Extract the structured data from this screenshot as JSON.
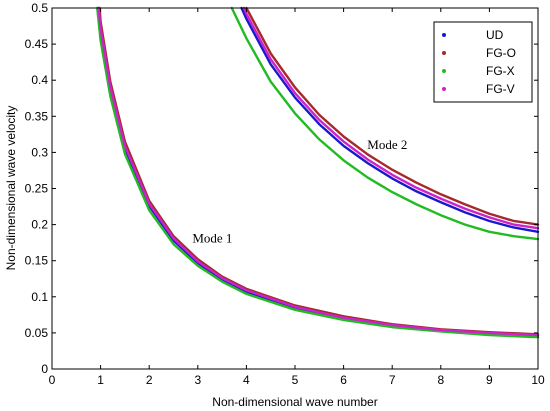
{
  "chart_data": {
    "type": "line",
    "title": "",
    "xlabel": "Non-dimensional wave number",
    "ylabel": "Non-dimensional wave velocity",
    "xlim": [
      0,
      10
    ],
    "ylim": [
      0,
      0.5
    ],
    "x_ticks": [
      0,
      1,
      2,
      3,
      4,
      5,
      6,
      7,
      8,
      9,
      10
    ],
    "y_ticks": [
      0,
      0.05,
      0.1,
      0.15,
      0.2,
      0.25,
      0.3,
      0.35,
      0.4,
      0.45,
      0.5
    ],
    "x_tick_labels": [
      "0",
      "1",
      "2",
      "3",
      "4",
      "5",
      "6",
      "7",
      "8",
      "9",
      "10"
    ],
    "y_tick_labels": [
      "0",
      "0.05",
      "0.1",
      "0.15",
      "0.2",
      "0.25",
      "0.3",
      "0.35",
      "0.4",
      "0.45",
      "0.5"
    ],
    "grid": false,
    "legend_position": "top-right",
    "annotations": [
      {
        "text": "Mode 1",
        "x": 3.3,
        "y": 0.175
      },
      {
        "text": "Mode 2",
        "x": 6.9,
        "y": 0.305
      }
    ],
    "series": [
      {
        "name": "UD",
        "color": "#1a1acc",
        "mode1": {
          "x": [
            0.95,
            1.0,
            1.2,
            1.5,
            2.0,
            2.5,
            3.0,
            3.5,
            4.0,
            5.0,
            6.0,
            7.0,
            8.0,
            9.0,
            10.0
          ],
          "y": [
            0.5,
            0.466,
            0.386,
            0.305,
            0.226,
            0.178,
            0.147,
            0.124,
            0.107,
            0.085,
            0.07,
            0.06,
            0.054,
            0.049,
            0.046
          ]
        },
        "mode2": {
          "x": [
            3.9,
            4.0,
            4.5,
            5.0,
            5.5,
            6.0,
            6.5,
            7.0,
            7.5,
            8.0,
            8.5,
            9.0,
            9.5,
            10.0
          ],
          "y": [
            0.5,
            0.485,
            0.422,
            0.376,
            0.339,
            0.309,
            0.285,
            0.264,
            0.246,
            0.231,
            0.217,
            0.205,
            0.196,
            0.19
          ]
        }
      },
      {
        "name": "FG-O",
        "color": "#a52a2a",
        "mode1": {
          "x": [
            0.98,
            1.0,
            1.2,
            1.5,
            2.0,
            2.5,
            3.0,
            3.5,
            4.0,
            5.0,
            6.0,
            7.0,
            8.0,
            9.0,
            10.0
          ],
          "y": [
            0.5,
            0.481,
            0.398,
            0.315,
            0.233,
            0.184,
            0.152,
            0.128,
            0.111,
            0.088,
            0.073,
            0.062,
            0.055,
            0.051,
            0.048
          ]
        },
        "mode2": {
          "x": [
            4.0,
            4.5,
            5.0,
            5.5,
            6.0,
            6.5,
            7.0,
            7.5,
            8.0,
            8.5,
            9.0,
            9.5,
            10.0
          ],
          "y": [
            0.5,
            0.437,
            0.39,
            0.352,
            0.322,
            0.297,
            0.276,
            0.258,
            0.242,
            0.228,
            0.215,
            0.205,
            0.2
          ]
        }
      },
      {
        "name": "FG-X",
        "color": "#22bb22",
        "mode1": {
          "x": [
            0.93,
            1.0,
            1.2,
            1.5,
            2.0,
            2.5,
            3.0,
            3.5,
            4.0,
            5.0,
            6.0,
            7.0,
            8.0,
            9.0,
            10.0
          ],
          "y": [
            0.5,
            0.455,
            0.378,
            0.298,
            0.22,
            0.173,
            0.143,
            0.121,
            0.104,
            0.082,
            0.068,
            0.058,
            0.052,
            0.047,
            0.044
          ]
        },
        "mode2": {
          "x": [
            3.7,
            4.0,
            4.5,
            5.0,
            5.5,
            6.0,
            6.5,
            7.0,
            7.5,
            8.0,
            8.5,
            9.0,
            9.5,
            10.0
          ],
          "y": [
            0.5,
            0.458,
            0.398,
            0.354,
            0.318,
            0.289,
            0.265,
            0.245,
            0.228,
            0.213,
            0.2,
            0.19,
            0.184,
            0.18
          ]
        }
      },
      {
        "name": "FG-V",
        "color": "#cc22cc",
        "mode1": {
          "x": [
            0.96,
            1.0,
            1.2,
            1.5,
            2.0,
            2.5,
            3.0,
            3.5,
            4.0,
            5.0,
            6.0,
            7.0,
            8.0,
            9.0,
            10.0
          ],
          "y": [
            0.5,
            0.472,
            0.391,
            0.309,
            0.229,
            0.181,
            0.149,
            0.126,
            0.109,
            0.086,
            0.071,
            0.061,
            0.054,
            0.05,
            0.047
          ]
        },
        "mode2": {
          "x": [
            3.95,
            4.0,
            4.5,
            5.0,
            5.5,
            6.0,
            6.5,
            7.0,
            7.5,
            8.0,
            8.5,
            9.0,
            9.5,
            10.0
          ],
          "y": [
            0.5,
            0.492,
            0.429,
            0.382,
            0.345,
            0.315,
            0.29,
            0.269,
            0.251,
            0.236,
            0.222,
            0.21,
            0.2,
            0.195
          ]
        }
      }
    ]
  }
}
